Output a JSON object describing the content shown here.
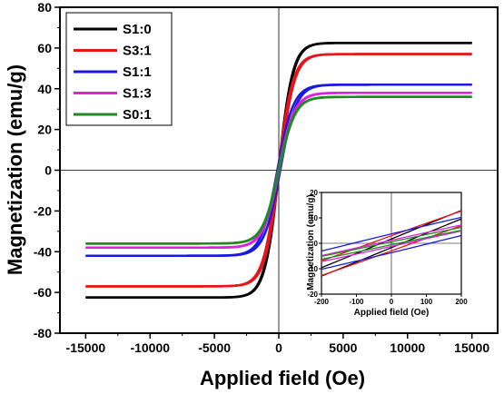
{
  "chart_data": [
    {
      "type": "line",
      "xlabel": "Applied field (Oe)",
      "ylabel": "Magnetization (emu/g)",
      "xlim": [
        -17000,
        17000
      ],
      "ylim": [
        -80,
        80
      ],
      "xticks": [
        -15000,
        -10000,
        -5000,
        0,
        5000,
        10000,
        15000
      ],
      "yticks": [
        -80,
        -60,
        -40,
        -20,
        0,
        20,
        40,
        60,
        80
      ],
      "reference_lines": [
        "x=0",
        "y=0"
      ],
      "grid": false,
      "legend_position": "top-left",
      "series": [
        {
          "name": "S1:0",
          "color": "#000000",
          "ms": 62.5,
          "hk": 1100,
          "hc": 30
        },
        {
          "name": "S3:1",
          "color": "#e8141c",
          "ms": 57,
          "hk": 1150,
          "hc": 60
        },
        {
          "name": "S1:1",
          "color": "#1a1adc",
          "ms": 42,
          "hk": 1250,
          "hc": 110
        },
        {
          "name": "S1:3",
          "color": "#e020e0",
          "ms": 38,
          "hk": 1250,
          "hc": 40
        },
        {
          "name": "S0:1",
          "color": "#1f8a1f",
          "ms": 36,
          "hk": 1250,
          "hc": 20
        }
      ]
    },
    {
      "type": "line",
      "xlabel": "Applied field (Oe)",
      "ylabel": "Magnetization (emu/g)",
      "xlim": [
        -200,
        200
      ],
      "ylim": [
        -20,
        20
      ],
      "xticks": [
        -200,
        -100,
        0,
        100,
        200
      ],
      "yticks": [
        -20,
        -10,
        0,
        10,
        20
      ]
    }
  ]
}
